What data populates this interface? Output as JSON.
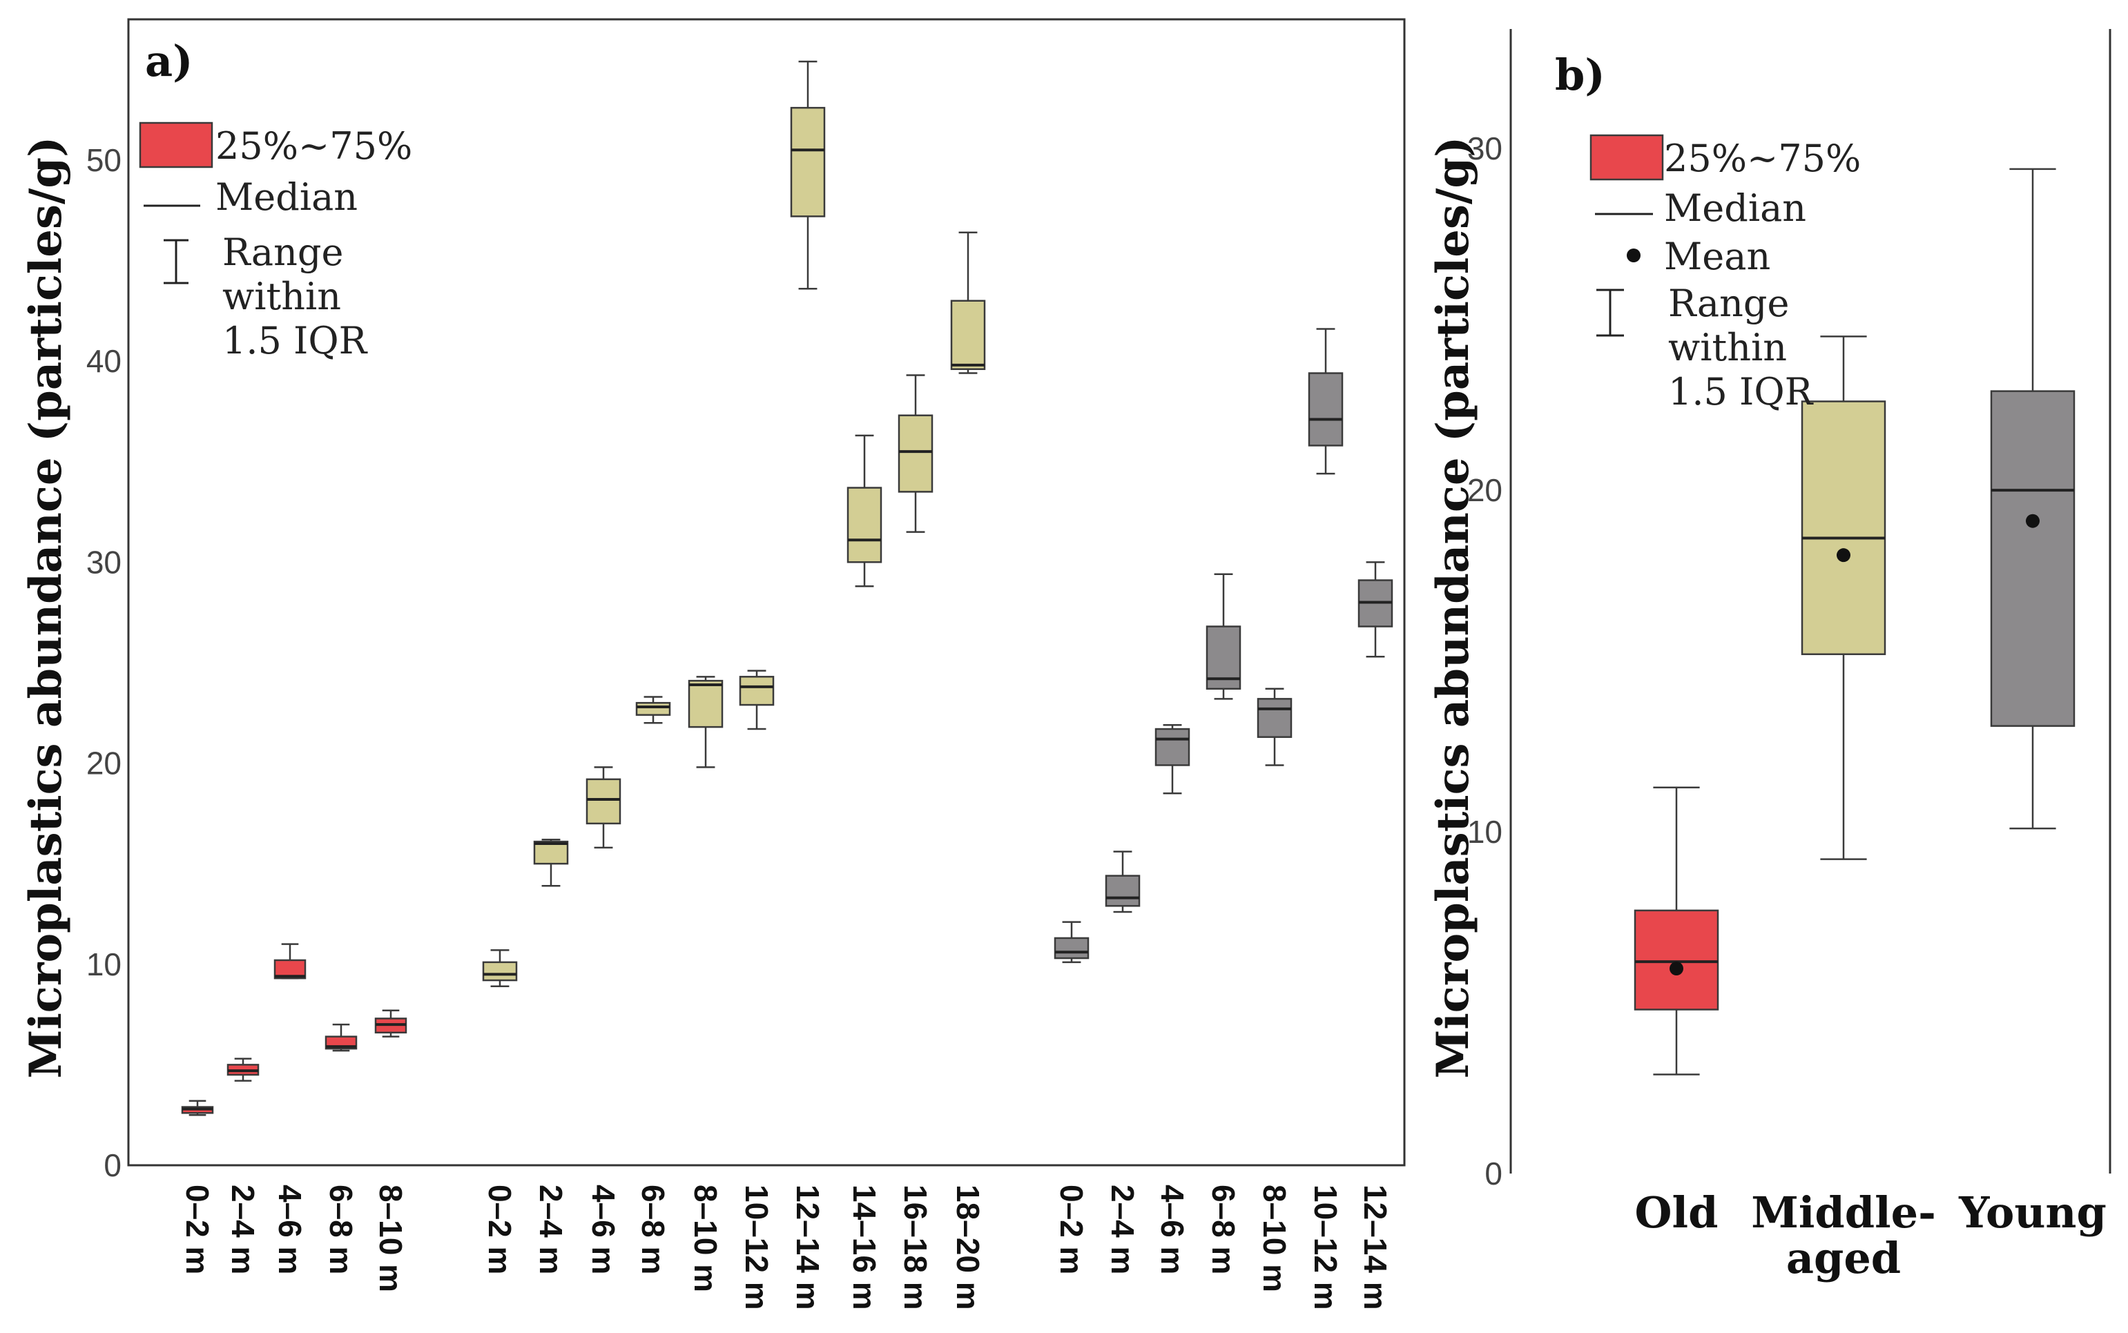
{
  "colors": {
    "old": "#e8474c",
    "middle": "#d3ce94",
    "young": "#8c8a8c"
  },
  "chart_data": [
    {
      "panel": "a)",
      "type": "box",
      "ylabel": "Microplastics abundance (particles/g)",
      "ylim": [
        0,
        57
      ],
      "yticks": [
        "0",
        "10",
        "20",
        "30",
        "40",
        "50"
      ],
      "groups": [
        {
          "name": "Old",
          "color_key": "old",
          "boxes": [
            {
              "label": "0–2 m",
              "min": 2.5,
              "q1": 2.6,
              "median": 2.8,
              "q3": 2.9,
              "max": 3.2
            },
            {
              "label": "2–4 m",
              "min": 4.2,
              "q1": 4.5,
              "median": 4.7,
              "q3": 5.0,
              "max": 5.3
            },
            {
              "label": "4–6 m",
              "min": 9.3,
              "q1": 9.3,
              "median": 9.4,
              "q3": 10.2,
              "max": 11.0
            },
            {
              "label": "6–8 m",
              "min": 5.7,
              "q1": 5.8,
              "median": 5.9,
              "q3": 6.4,
              "max": 7.0
            },
            {
              "label": "8–10 m",
              "min": 6.4,
              "q1": 6.6,
              "median": 7.0,
              "q3": 7.3,
              "max": 7.7
            }
          ]
        },
        {
          "name": "Middle-aged",
          "color_key": "middle",
          "boxes": [
            {
              "label": "0–2 m",
              "min": 8.9,
              "q1": 9.2,
              "median": 9.5,
              "q3": 10.1,
              "max": 10.7
            },
            {
              "label": "2–4 m",
              "min": 13.9,
              "q1": 15.0,
              "median": 16.0,
              "q3": 16.1,
              "max": 16.2
            },
            {
              "label": "4–6 m",
              "min": 15.8,
              "q1": 17.0,
              "median": 18.2,
              "q3": 19.2,
              "max": 19.8
            },
            {
              "label": "6–8 m",
              "min": 22.0,
              "q1": 22.4,
              "median": 22.8,
              "q3": 23.0,
              "max": 23.3
            },
            {
              "label": "8–10 m",
              "min": 19.8,
              "q1": 21.8,
              "median": 23.9,
              "q3": 24.1,
              "max": 24.3
            },
            {
              "label": "10–12 m",
              "min": 21.7,
              "q1": 22.9,
              "median": 23.8,
              "q3": 24.3,
              "max": 24.6
            },
            {
              "label": "12–14 m",
              "min": 43.6,
              "q1": 47.2,
              "median": 50.5,
              "q3": 52.6,
              "max": 54.9
            },
            {
              "label": "14–16 m",
              "min": 28.8,
              "q1": 30.0,
              "median": 31.1,
              "q3": 33.7,
              "max": 36.3
            },
            {
              "label": "16–18 m",
              "min": 31.5,
              "q1": 33.5,
              "median": 35.5,
              "q3": 37.3,
              "max": 39.3
            },
            {
              "label": "18–20 m",
              "min": 39.4,
              "q1": 39.6,
              "median": 39.8,
              "q3": 43.0,
              "max": 46.4
            }
          ]
        },
        {
          "name": "Young",
          "color_key": "young",
          "boxes": [
            {
              "label": "0–2 m",
              "min": 10.1,
              "q1": 10.3,
              "median": 10.6,
              "q3": 11.3,
              "max": 12.1
            },
            {
              "label": "2–4 m",
              "min": 12.6,
              "q1": 12.9,
              "median": 13.3,
              "q3": 14.4,
              "max": 15.6
            },
            {
              "label": "4–6 m",
              "min": 18.5,
              "q1": 19.9,
              "median": 21.2,
              "q3": 21.7,
              "max": 21.9
            },
            {
              "label": "6–8 m",
              "min": 23.2,
              "q1": 23.7,
              "median": 24.2,
              "q3": 26.8,
              "max": 29.4
            },
            {
              "label": "8–10 m",
              "min": 19.9,
              "q1": 21.3,
              "median": 22.7,
              "q3": 23.2,
              "max": 23.7
            },
            {
              "label": "10–12 m",
              "min": 34.4,
              "q1": 35.8,
              "median": 37.1,
              "q3": 39.4,
              "max": 41.6
            },
            {
              "label": "12–14 m",
              "min": 25.3,
              "q1": 26.8,
              "median": 28.0,
              "q3": 29.1,
              "max": 30.0
            }
          ]
        }
      ],
      "legend": {
        "box": "25%~75%",
        "median": "Median",
        "range_lines": [
          "Range",
          "within",
          "1.5 IQR"
        ]
      }
    },
    {
      "panel": "b)",
      "type": "box",
      "ylabel": "Microplastics abundance (particles/g)",
      "ylim": [
        0,
        33.5
      ],
      "yticks": [
        "0",
        "10",
        "20",
        "30"
      ],
      "boxes": [
        {
          "label": "Old",
          "color_key": "old",
          "min": 2.9,
          "q1": 4.8,
          "median": 6.2,
          "q3": 7.7,
          "max": 11.3,
          "mean": 6.0
        },
        {
          "label_lines": [
            "Middle-",
            "aged"
          ],
          "color_key": "middle",
          "min": 9.2,
          "q1": 15.2,
          "median": 18.6,
          "q3": 22.6,
          "max": 24.5,
          "mean": 18.1
        },
        {
          "label": "Young",
          "color_key": "young",
          "min": 10.1,
          "q1": 13.1,
          "median": 20.0,
          "q3": 22.9,
          "max": 29.4,
          "mean": 19.1
        }
      ],
      "legend": {
        "box": "25%~75%",
        "median": "Median",
        "mean": "Mean",
        "range_lines": [
          "Range",
          "within",
          "1.5 IQR"
        ]
      }
    }
  ]
}
